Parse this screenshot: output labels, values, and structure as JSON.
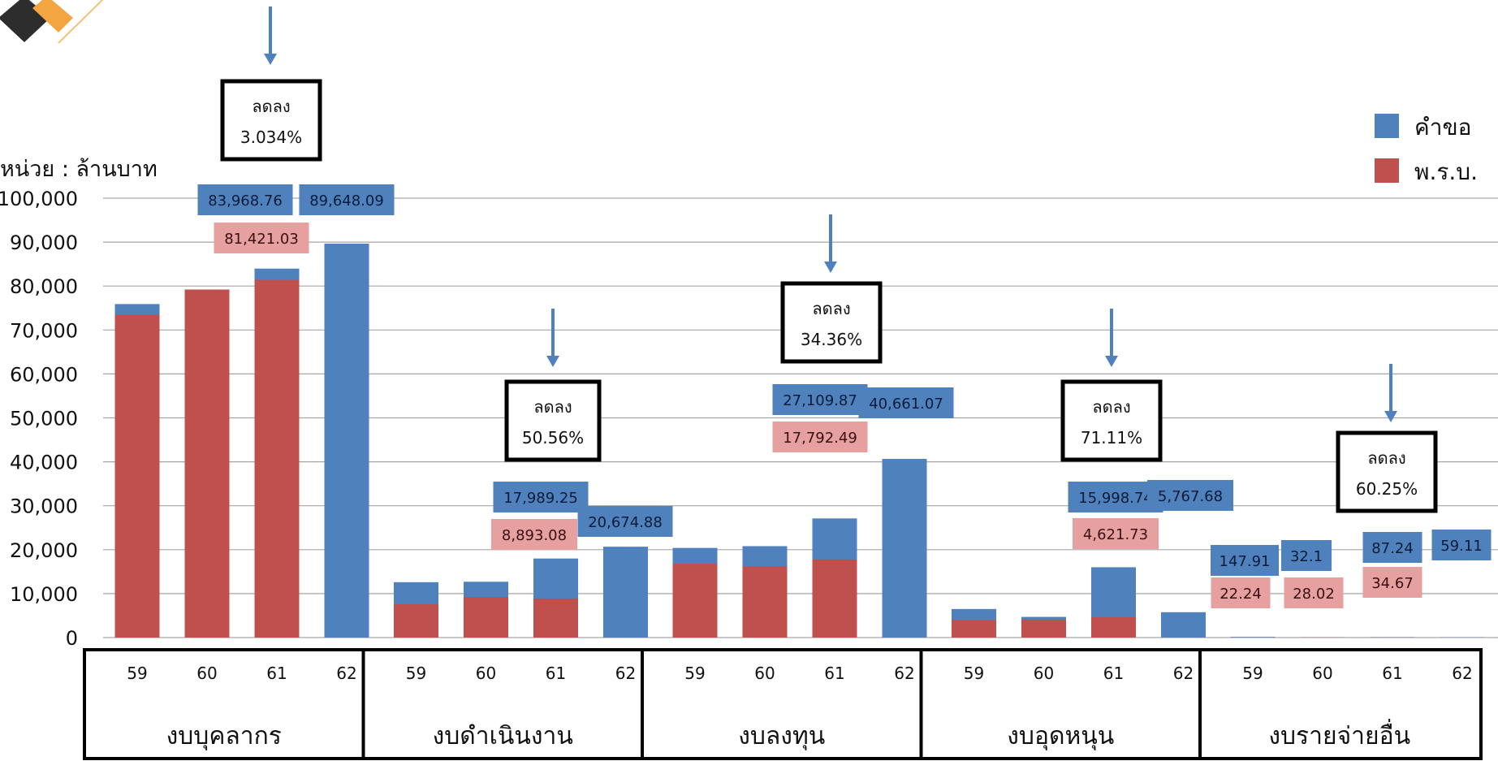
{
  "chart_data": {
    "type": "bar",
    "stacked_overlay": true,
    "unit_label": "หน่วย : ล้านบาท",
    "ylim": [
      0,
      100000
    ],
    "yticks": [
      "0",
      "10,000",
      "20,000",
      "30,000",
      "40,000",
      "50,000",
      "60,000",
      "70,000",
      "80,000",
      "90,000",
      "100,000"
    ],
    "grid": true,
    "legend_position": "top-right",
    "legend": [
      {
        "label": "คำขอ",
        "color": "#4f81bd"
      },
      {
        "label": "พ.ร.บ.",
        "color": "#c0504d"
      }
    ],
    "groups": [
      {
        "name": "งบบุคลากร",
        "years": [
          "59",
          "60",
          "61",
          "62"
        ],
        "request": [
          75900,
          79200,
          83968.76,
          89648.09
        ],
        "act": [
          73500,
          79200,
          81421.03,
          null
        ]
      },
      {
        "name": "งบดำเนินงาน",
        "years": [
          "59",
          "60",
          "61",
          "62"
        ],
        "request": [
          12600,
          12700,
          17989.25,
          20674.88
        ],
        "act": [
          7600,
          9200,
          8893.08,
          null
        ]
      },
      {
        "name": "งบลงทุน",
        "years": [
          "59",
          "60",
          "61",
          "62"
        ],
        "request": [
          20400,
          20800,
          27109.87,
          40661.07
        ],
        "act": [
          16800,
          16200,
          17792.49,
          null
        ]
      },
      {
        "name": "งบอุดหนุน",
        "years": [
          "59",
          "60",
          "61",
          "62"
        ],
        "request": [
          6500,
          4700,
          15998.74,
          5767.68
        ],
        "act": [
          4000,
          4100,
          4621.73,
          null
        ]
      },
      {
        "name": "งบรายจ่ายอื่น",
        "years": [
          "59",
          "60",
          "61",
          "62"
        ],
        "request": [
          147.91,
          32.1,
          87.24,
          59.11
        ],
        "act": [
          22.24,
          28.02,
          34.67,
          null
        ]
      }
    ],
    "data_labels": [
      {
        "group": 0,
        "year": "61",
        "series": "request",
        "text": "83,968.76"
      },
      {
        "group": 0,
        "year": "61",
        "series": "act",
        "text": "81,421.03"
      },
      {
        "group": 0,
        "year": "62",
        "series": "request",
        "text": "89,648.09"
      },
      {
        "group": 1,
        "year": "61",
        "series": "request",
        "text": "17,989.25"
      },
      {
        "group": 1,
        "year": "61",
        "series": "act",
        "text": "8,893.08"
      },
      {
        "group": 1,
        "year": "62",
        "series": "request",
        "text": "20,674.88"
      },
      {
        "group": 2,
        "year": "61",
        "series": "request",
        "text": "27,109.87"
      },
      {
        "group": 2,
        "year": "61",
        "series": "act",
        "text": "17,792.49"
      },
      {
        "group": 2,
        "year": "62",
        "series": "request",
        "text": "40,661.07"
      },
      {
        "group": 3,
        "year": "61",
        "series": "request",
        "text": "15,998.74"
      },
      {
        "group": 3,
        "year": "61",
        "series": "act",
        "text": "4,621.73"
      },
      {
        "group": 3,
        "year": "62",
        "series": "request",
        "text": "5,767.68"
      },
      {
        "group": 4,
        "year": "59",
        "series": "request",
        "text": "147.91"
      },
      {
        "group": 4,
        "year": "59",
        "series": "act",
        "text": "22.24"
      },
      {
        "group": 4,
        "year": "60",
        "series": "request",
        "text": "32.1"
      },
      {
        "group": 4,
        "year": "60",
        "series": "act",
        "text": "28.02"
      },
      {
        "group": 4,
        "year": "61",
        "series": "request",
        "text": "87.24"
      },
      {
        "group": 4,
        "year": "61",
        "series": "act",
        "text": "34.67"
      },
      {
        "group": 4,
        "year": "62",
        "series": "request",
        "text": "59.11"
      }
    ],
    "callouts": [
      {
        "group": 0,
        "title": "ลดลง",
        "value": "3.034%"
      },
      {
        "group": 1,
        "title": "ลดลง",
        "value": "50.56%"
      },
      {
        "group": 2,
        "title": "ลดลง",
        "value": "34.36%"
      },
      {
        "group": 3,
        "title": "ลดลง",
        "value": "71.11%"
      },
      {
        "group": 4,
        "title": "ลดลง",
        "value": "60.25%"
      }
    ]
  }
}
